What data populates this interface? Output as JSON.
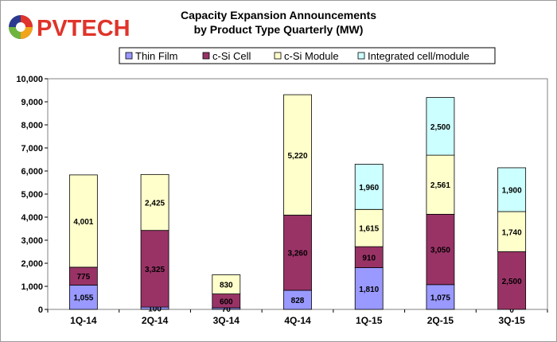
{
  "brand": {
    "logo_text": "PVTECH",
    "accent": "#e0332a",
    "text_color": "#2b3a8f"
  },
  "chart_data": {
    "type": "bar",
    "stacked": true,
    "title": "Capacity Expansion Announcements",
    "subtitle": "by  Product Type Quarterly (MW)",
    "categories": [
      "1Q-14",
      "2Q-14",
      "3Q-14",
      "4Q-14",
      "1Q-15",
      "2Q-15",
      "3Q-15"
    ],
    "ylim": [
      0,
      10000
    ],
    "yticks": [
      0,
      1000,
      2000,
      3000,
      4000,
      5000,
      6000,
      7000,
      8000,
      9000,
      10000
    ],
    "ytick_labels": [
      "0",
      "1,000",
      "2,000",
      "3,000",
      "4,000",
      "5,000",
      "6,000",
      "7,000",
      "8,000",
      "9,000",
      "10,000"
    ],
    "legend_position": "top",
    "grid": false,
    "series": [
      {
        "name": "Thin Film",
        "color": "#9999ff",
        "values": [
          1055,
          100,
          70,
          828,
          1810,
          1075,
          0
        ],
        "labels": [
          "1,055",
          "100",
          "70",
          "828",
          "1,810",
          "1,075",
          "0"
        ]
      },
      {
        "name": "c-Si Cell",
        "color": "#993366",
        "values": [
          775,
          3325,
          600,
          3260,
          910,
          3050,
          2500
        ],
        "labels": [
          "775",
          "3,325",
          "600",
          "3,260",
          "910",
          "3,050",
          "2,500"
        ]
      },
      {
        "name": "c-Si Module",
        "color": "#ffffcc",
        "values": [
          4001,
          2425,
          830,
          5220,
          1615,
          2561,
          1740
        ],
        "labels": [
          "4,001",
          "2,425",
          "830",
          "5,220",
          "1,615",
          "2,561",
          "1,740"
        ]
      },
      {
        "name": "Integrated cell/module",
        "color": "#ccffff",
        "values": [
          0,
          0,
          0,
          0,
          1960,
          2500,
          1900
        ],
        "labels": [
          "",
          "",
          "",
          "",
          "1,960",
          "2,500",
          "1,900"
        ]
      }
    ]
  }
}
